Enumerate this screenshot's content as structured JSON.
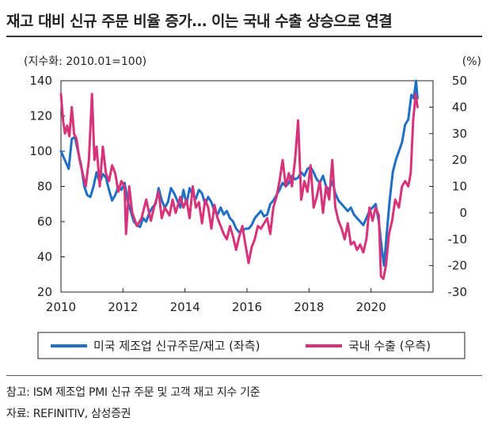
{
  "header": {
    "title": "재고 대비 신규 주문 비율 증가… 이는 국내 수출 상승으로 연결"
  },
  "footer": {
    "note": "참고: ISM 제조업 PMI 신규 주문 및 고객 재고 지수 기준",
    "source": "자료: REFINITIV, 삼성증권"
  },
  "chart_data": {
    "type": "line",
    "left_unit": "(지수화: 2010.01=100)",
    "right_unit": "(%)",
    "x_ticks": [
      "2010",
      "2012",
      "2014",
      "2016",
      "2018",
      "2020"
    ],
    "x_tick_values": [
      2010,
      2012,
      2014,
      2016,
      2018,
      2020
    ],
    "y_left_ticks": [
      "140",
      "120",
      "100",
      "80",
      "60",
      "40",
      "20"
    ],
    "y_left_values": [
      140,
      120,
      100,
      80,
      60,
      40,
      20
    ],
    "y_right_ticks": [
      "50",
      "40",
      "30",
      "20",
      "10",
      "0",
      "-10",
      "-20",
      "-30"
    ],
    "y_right_values": [
      50,
      40,
      30,
      20,
      10,
      0,
      -10,
      -20,
      -30
    ],
    "xlim": [
      2010,
      2022
    ],
    "ylim_left": [
      20,
      140
    ],
    "ylim_right": [
      -30,
      50
    ],
    "series": [
      {
        "name": "미국 제조업 신규주문/재고 (좌측)",
        "axis": "left",
        "color": "#1f6fc4",
        "points": [
          [
            2010.0,
            100
          ],
          [
            2010.1,
            96
          ],
          [
            2010.25,
            90
          ],
          [
            2010.35,
            107
          ],
          [
            2010.45,
            108
          ],
          [
            2010.55,
            100
          ],
          [
            2010.65,
            92
          ],
          [
            2010.75,
            80
          ],
          [
            2010.85,
            75
          ],
          [
            2010.95,
            74
          ],
          [
            2011.05,
            80
          ],
          [
            2011.15,
            88
          ],
          [
            2011.25,
            82
          ],
          [
            2011.35,
            87
          ],
          [
            2011.45,
            85
          ],
          [
            2011.55,
            78
          ],
          [
            2011.65,
            72
          ],
          [
            2011.75,
            75
          ],
          [
            2011.85,
            80
          ],
          [
            2011.95,
            78
          ],
          [
            2012.05,
            82
          ],
          [
            2012.15,
            72
          ],
          [
            2012.25,
            66
          ],
          [
            2012.35,
            60
          ],
          [
            2012.45,
            58
          ],
          [
            2012.55,
            57
          ],
          [
            2012.65,
            62
          ],
          [
            2012.75,
            60
          ],
          [
            2012.85,
            65
          ],
          [
            2012.95,
            68
          ],
          [
            2013.05,
            70
          ],
          [
            2013.15,
            79
          ],
          [
            2013.25,
            72
          ],
          [
            2013.35,
            68
          ],
          [
            2013.45,
            71
          ],
          [
            2013.55,
            79
          ],
          [
            2013.65,
            76
          ],
          [
            2013.75,
            72
          ],
          [
            2013.85,
            68
          ],
          [
            2013.95,
            78
          ],
          [
            2014.05,
            70
          ],
          [
            2014.15,
            79
          ],
          [
            2014.25,
            75
          ],
          [
            2014.35,
            73
          ],
          [
            2014.45,
            78
          ],
          [
            2014.55,
            76
          ],
          [
            2014.65,
            70
          ],
          [
            2014.75,
            74
          ],
          [
            2014.85,
            71
          ],
          [
            2014.95,
            66
          ],
          [
            2015.05,
            64
          ],
          [
            2015.15,
            68
          ],
          [
            2015.25,
            64
          ],
          [
            2015.35,
            66
          ],
          [
            2015.45,
            62
          ],
          [
            2015.55,
            60
          ],
          [
            2015.65,
            56
          ],
          [
            2015.75,
            54
          ],
          [
            2015.85,
            55
          ],
          [
            2015.95,
            56
          ],
          [
            2016.05,
            56
          ],
          [
            2016.15,
            58
          ],
          [
            2016.25,
            62
          ],
          [
            2016.35,
            64
          ],
          [
            2016.45,
            66
          ],
          [
            2016.55,
            63
          ],
          [
            2016.65,
            64
          ],
          [
            2016.75,
            70
          ],
          [
            2016.85,
            72
          ],
          [
            2016.95,
            75
          ],
          [
            2017.05,
            78
          ],
          [
            2017.15,
            82
          ],
          [
            2017.25,
            80
          ],
          [
            2017.35,
            82
          ],
          [
            2017.45,
            86
          ],
          [
            2017.55,
            84
          ],
          [
            2017.65,
            85
          ],
          [
            2017.75,
            88
          ],
          [
            2017.85,
            86
          ],
          [
            2017.95,
            90
          ],
          [
            2018.05,
            91
          ],
          [
            2018.15,
            88
          ],
          [
            2018.25,
            84
          ],
          [
            2018.35,
            82
          ],
          [
            2018.45,
            86
          ],
          [
            2018.55,
            80
          ],
          [
            2018.65,
            78
          ],
          [
            2018.75,
            83
          ],
          [
            2018.85,
            76
          ],
          [
            2018.95,
            72
          ],
          [
            2019.05,
            70
          ],
          [
            2019.15,
            68
          ],
          [
            2019.25,
            66
          ],
          [
            2019.35,
            68
          ],
          [
            2019.45,
            64
          ],
          [
            2019.55,
            62
          ],
          [
            2019.65,
            60
          ],
          [
            2019.75,
            58
          ],
          [
            2019.85,
            62
          ],
          [
            2019.95,
            66
          ],
          [
            2020.05,
            68
          ],
          [
            2020.15,
            70
          ],
          [
            2020.25,
            60
          ],
          [
            2020.35,
            44
          ],
          [
            2020.42,
            35
          ],
          [
            2020.5,
            52
          ],
          [
            2020.6,
            72
          ],
          [
            2020.7,
            88
          ],
          [
            2020.8,
            95
          ],
          [
            2020.9,
            100
          ],
          [
            2021.0,
            105
          ],
          [
            2021.1,
            115
          ],
          [
            2021.2,
            118
          ],
          [
            2021.3,
            132
          ],
          [
            2021.38,
            130
          ],
          [
            2021.45,
            140
          ],
          [
            2021.5,
            130
          ]
        ]
      },
      {
        "name": "국내 수출 (우측)",
        "axis": "right",
        "color": "#d6337a",
        "points": [
          [
            2010.0,
            45
          ],
          [
            2010.07,
            35
          ],
          [
            2010.13,
            30
          ],
          [
            2010.2,
            33
          ],
          [
            2010.27,
            29
          ],
          [
            2010.35,
            40
          ],
          [
            2010.42,
            30
          ],
          [
            2010.5,
            28
          ],
          [
            2010.6,
            20
          ],
          [
            2010.7,
            15
          ],
          [
            2010.8,
            10
          ],
          [
            2010.9,
            20
          ],
          [
            2011.0,
            45
          ],
          [
            2011.08,
            20
          ],
          [
            2011.15,
            25
          ],
          [
            2011.25,
            10
          ],
          [
            2011.35,
            25
          ],
          [
            2011.45,
            15
          ],
          [
            2011.55,
            12
          ],
          [
            2011.65,
            18
          ],
          [
            2011.75,
            15
          ],
          [
            2011.85,
            8
          ],
          [
            2011.95,
            12
          ],
          [
            2012.05,
            10
          ],
          [
            2012.1,
            -8
          ],
          [
            2012.2,
            10
          ],
          [
            2012.3,
            0
          ],
          [
            2012.45,
            -5
          ],
          [
            2012.6,
            -2
          ],
          [
            2012.75,
            5
          ],
          [
            2012.9,
            -3
          ],
          [
            2013.0,
            2
          ],
          [
            2013.15,
            8
          ],
          [
            2013.25,
            -2
          ],
          [
            2013.35,
            2
          ],
          [
            2013.5,
            -1
          ],
          [
            2013.6,
            5
          ],
          [
            2013.7,
            0
          ],
          [
            2013.85,
            6
          ],
          [
            2013.95,
            2
          ],
          [
            2014.05,
            5
          ],
          [
            2014.15,
            -2
          ],
          [
            2014.25,
            10
          ],
          [
            2014.35,
            2
          ],
          [
            2014.45,
            4
          ],
          [
            2014.55,
            -4
          ],
          [
            2014.65,
            5
          ],
          [
            2014.75,
            2
          ],
          [
            2014.85,
            -6
          ],
          [
            2014.95,
            3
          ],
          [
            2015.05,
            -2
          ],
          [
            2015.15,
            -5
          ],
          [
            2015.25,
            -8
          ],
          [
            2015.35,
            -10
          ],
          [
            2015.45,
            -5
          ],
          [
            2015.55,
            -9
          ],
          [
            2015.65,
            -14
          ],
          [
            2015.75,
            -9
          ],
          [
            2015.85,
            -5
          ],
          [
            2015.95,
            -12
          ],
          [
            2016.05,
            -19
          ],
          [
            2016.15,
            -13
          ],
          [
            2016.25,
            -10
          ],
          [
            2016.35,
            -5
          ],
          [
            2016.45,
            -6
          ],
          [
            2016.55,
            -4
          ],
          [
            2016.65,
            -2
          ],
          [
            2016.75,
            -8
          ],
          [
            2016.85,
            2
          ],
          [
            2016.95,
            6
          ],
          [
            2017.05,
            12
          ],
          [
            2017.15,
            20
          ],
          [
            2017.25,
            10
          ],
          [
            2017.35,
            15
          ],
          [
            2017.45,
            10
          ],
          [
            2017.55,
            20
          ],
          [
            2017.65,
            35
          ],
          [
            2017.75,
            5
          ],
          [
            2017.85,
            12
          ],
          [
            2017.95,
            8
          ],
          [
            2018.05,
            18
          ],
          [
            2018.15,
            2
          ],
          [
            2018.25,
            6
          ],
          [
            2018.35,
            12
          ],
          [
            2018.45,
            0
          ],
          [
            2018.55,
            10
          ],
          [
            2018.65,
            5
          ],
          [
            2018.75,
            20
          ],
          [
            2018.85,
            2
          ],
          [
            2018.95,
            -3
          ],
          [
            2019.05,
            -6
          ],
          [
            2019.15,
            -10
          ],
          [
            2019.25,
            -4
          ],
          [
            2019.35,
            -12
          ],
          [
            2019.45,
            -11
          ],
          [
            2019.55,
            -14
          ],
          [
            2019.65,
            -12
          ],
          [
            2019.75,
            -15
          ],
          [
            2019.85,
            -10
          ],
          [
            2019.95,
            2
          ],
          [
            2020.05,
            -3
          ],
          [
            2020.15,
            2
          ],
          [
            2020.25,
            -1
          ],
          [
            2020.32,
            -24
          ],
          [
            2020.4,
            -25
          ],
          [
            2020.48,
            -20
          ],
          [
            2020.58,
            -8
          ],
          [
            2020.68,
            -3
          ],
          [
            2020.78,
            5
          ],
          [
            2020.9,
            2
          ],
          [
            2021.0,
            10
          ],
          [
            2021.1,
            12
          ],
          [
            2021.2,
            10
          ],
          [
            2021.28,
            15
          ],
          [
            2021.36,
            35
          ],
          [
            2021.44,
            45
          ],
          [
            2021.5,
            40
          ]
        ]
      }
    ]
  }
}
